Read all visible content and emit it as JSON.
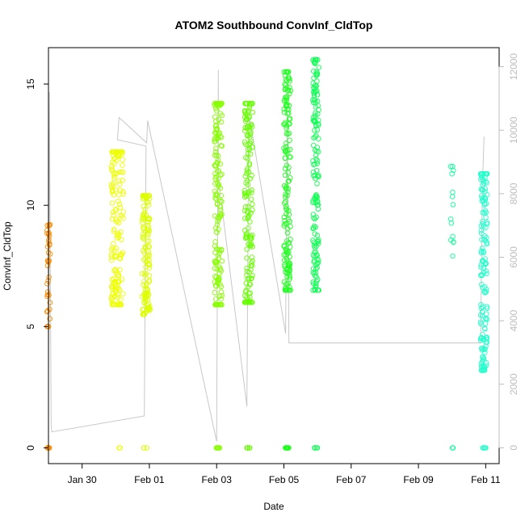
{
  "chart_data": {
    "type": "scatter",
    "title": "ATOM2 Southbound ConvInf_CldTop",
    "xlabel": "Date",
    "ylabel": "ConvInf_CldTop",
    "xlim": [
      -2.0,
      11.4
    ],
    "ylim": [
      -0.65,
      16.5
    ],
    "y2lim": [
      -500,
      12600
    ],
    "x_ticks": [
      {
        "value": -1,
        "label": "Jan 30"
      },
      {
        "value": 1,
        "label": "Feb 01"
      },
      {
        "value": 3,
        "label": "Feb 03"
      },
      {
        "value": 5,
        "label": "Feb 05"
      },
      {
        "value": 7,
        "label": "Feb 07"
      },
      {
        "value": 9,
        "label": "Feb 09"
      },
      {
        "value": 11,
        "label": "Feb 11"
      }
    ],
    "y_ticks": [
      0,
      5,
      10,
      15
    ],
    "y2_ticks": [
      0,
      2000,
      4000,
      6000,
      8000,
      10000,
      12000
    ],
    "colors": {
      "line_secondary": "#c8c8c8",
      "axis": "#000000",
      "axis_right": "#bdbdbd"
    },
    "clusters": [
      {
        "x": -2.0,
        "x_spread": 0.05,
        "color": "#ff8c00",
        "y_min": 5.0,
        "y_max": 9.2,
        "count": 36,
        "zeros": 10
      },
      {
        "x": 0.05,
        "x_spread": 0.18,
        "color": "#eeff00",
        "y_min": 5.9,
        "y_max": 12.2,
        "count": 150,
        "zeros": 2
      },
      {
        "x": 0.9,
        "x_spread": 0.12,
        "color": "#ddff00",
        "y_min": 5.5,
        "y_max": 10.4,
        "count": 130,
        "zeros": 3
      },
      {
        "x": 3.05,
        "x_spread": 0.11,
        "color": "#88ff00",
        "y_min": 5.9,
        "y_max": 14.2,
        "count": 160,
        "zeros": 8
      },
      {
        "x": 3.95,
        "x_spread": 0.12,
        "color": "#66ff00",
        "y_min": 6.0,
        "y_max": 14.2,
        "count": 160,
        "zeros": 6
      },
      {
        "x": 5.1,
        "x_spread": 0.1,
        "color": "#22ff22",
        "y_min": 6.5,
        "y_max": 15.5,
        "count": 160,
        "zeros": 10
      },
      {
        "x": 5.95,
        "x_spread": 0.09,
        "color": "#11ff55",
        "y_min": 6.5,
        "y_max": 16.0,
        "count": 160,
        "zeros": 6
      },
      {
        "x": 10.0,
        "x_spread": 0.05,
        "color": "#11ff99",
        "y_min": 7.9,
        "y_max": 11.6,
        "count": 14,
        "zeros": 3
      },
      {
        "x": 10.95,
        "x_spread": 0.1,
        "color": "#22ffcc",
        "y_min": 3.2,
        "y_max": 11.3,
        "count": 150,
        "zeros": 5
      }
    ],
    "secondary_line": [
      [
        -2.0,
        1800
      ],
      [
        -1.97,
        11200
      ],
      [
        -1.92,
        700
      ],
      [
        -1.9,
        500
      ],
      [
        0.85,
        1000
      ],
      [
        0.9,
        9500
      ],
      [
        0.05,
        9700
      ],
      [
        0.1,
        10400
      ],
      [
        0.92,
        9600
      ],
      [
        0.95,
        10300
      ],
      [
        3.0,
        200
      ],
      [
        3.05,
        11900
      ],
      [
        3.05,
        8500
      ],
      [
        3.9,
        1300
      ],
      [
        3.95,
        10000
      ],
      [
        3.98,
        10400
      ],
      [
        5.05,
        3600
      ],
      [
        5.1,
        10700
      ],
      [
        5.15,
        3300
      ],
      [
        10.85,
        3300
      ],
      [
        10.9,
        8200
      ],
      [
        10.95,
        9800
      ]
    ]
  }
}
